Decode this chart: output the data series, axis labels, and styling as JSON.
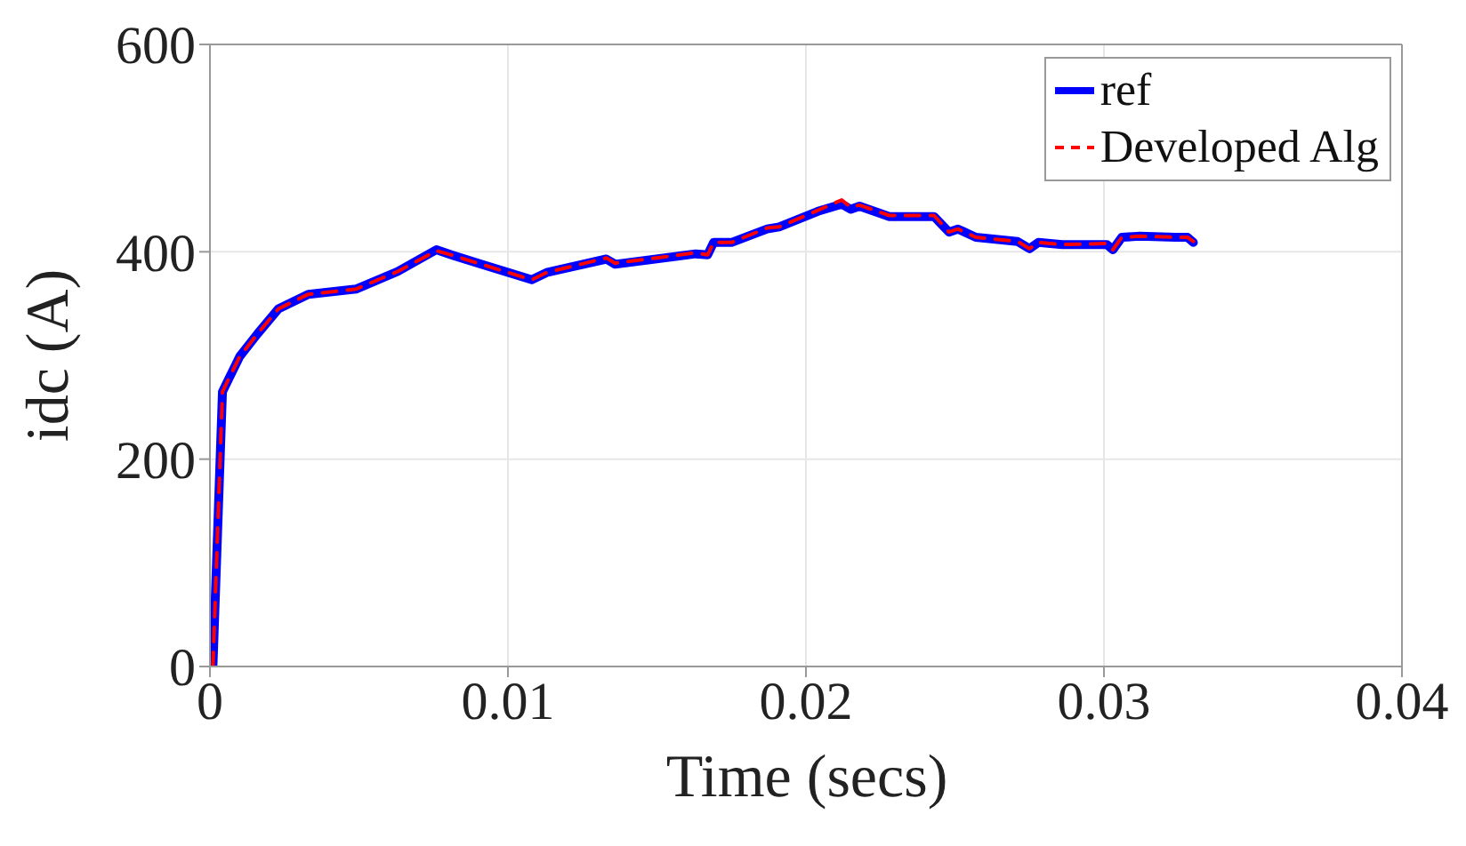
{
  "chart_data": {
    "type": "line",
    "xlabel": "Time (secs)",
    "ylabel": "idc (A)",
    "xlim": [
      0,
      0.04
    ],
    "xticks": [
      0,
      0.01,
      0.02,
      0.03,
      0.04
    ],
    "ylim": [
      0,
      600
    ],
    "yticks": [
      0,
      200,
      400,
      600
    ],
    "grid": true,
    "legend": "top right",
    "marker": "none",
    "x": [
      0.0001,
      0.00042,
      0.001,
      0.0016,
      0.0023,
      0.0033,
      0.0049,
      0.0063,
      0.0076,
      0.0081,
      0.0091,
      0.0108,
      0.0113,
      0.0133,
      0.0136,
      0.0163,
      0.0167,
      0.0169,
      0.0175,
      0.0187,
      0.0191,
      0.0204,
      0.0212,
      0.0215,
      0.0218,
      0.0228,
      0.0243,
      0.0248,
      0.0251,
      0.0257,
      0.0271,
      0.0275,
      0.0278,
      0.0286,
      0.0301,
      0.0303,
      0.0306,
      0.0312,
      0.0324,
      0.0328,
      0.033
    ],
    "series": [
      {
        "name": "ref",
        "color": "#0000ff",
        "line_style": "solid",
        "values": [
          0,
          265,
          299,
          321,
          345,
          359,
          364,
          381,
          402,
          397,
          388,
          373,
          380,
          393,
          388,
          398,
          397,
          409,
          409,
          422,
          424,
          439,
          446,
          441,
          444,
          434,
          434,
          419,
          422,
          414,
          410,
          403,
          409,
          407,
          407,
          402,
          414,
          415,
          414,
          414,
          409
        ]
      },
      {
        "name": "Developed Alg",
        "color": "#ff0000",
        "line_style": "dashed",
        "values": [
          0,
          265,
          299,
          321,
          345,
          359,
          364,
          381,
          401,
          397,
          388,
          373,
          380,
          394,
          389,
          399,
          397,
          409,
          409,
          423,
          424,
          440,
          450,
          443,
          445,
          435,
          435,
          419,
          422,
          414,
          410,
          403,
          409,
          407,
          408,
          402,
          414,
          415,
          414,
          414,
          410
        ]
      }
    ]
  }
}
